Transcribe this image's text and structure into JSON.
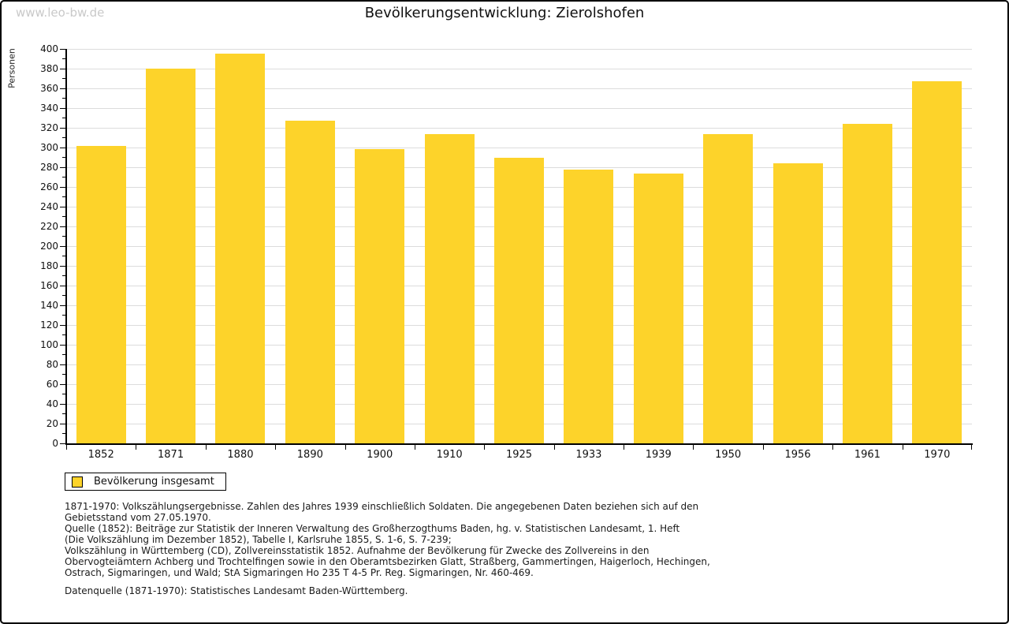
{
  "watermark": "www.leo-bw.de",
  "header": {
    "title": "Bevölkerungsentwicklung: Zierolshofen"
  },
  "chart_data": {
    "type": "bar",
    "title": "Bevölkerungsentwicklung: Zierolshofen",
    "xlabel": "",
    "ylabel": "Personen",
    "categories": [
      "1852",
      "1871",
      "1880",
      "1890",
      "1900",
      "1910",
      "1925",
      "1933",
      "1939",
      "1950",
      "1956",
      "1961",
      "1970"
    ],
    "series": [
      {
        "name": "Bevölkerung insgesamt",
        "values": [
          301,
          380,
          395,
          327,
          298,
          313,
          289,
          277,
          273,
          313,
          284,
          324,
          367
        ]
      }
    ],
    "ylim": [
      0,
      400
    ],
    "ytick_major_step": 20,
    "ytick_minor_step": 10,
    "grid": "horizontal major gridlines on",
    "legend_position": "bottom-left",
    "bar_color": "#fdd32a",
    "gridline_color": "#dcdcdc",
    "axis_color": "#000000"
  },
  "legend": {
    "items": [
      {
        "label": "Bevölkerung insgesamt",
        "color": "#fdd32a"
      }
    ]
  },
  "footer": {
    "notes": "1871-1970: Volkszählungsergebnisse. Zahlen des Jahres 1939 einschließlich Soldaten. Die angegebenen Daten beziehen sich auf den\nGebietsstand vom 27.05.1970.\nQuelle (1852): Beiträge zur Statistik der Inneren Verwaltung des Großherzogthums Baden, hg. v. Statistischen Landesamt, 1. Heft\n(Die Volkszählung im Dezember 1852), Tabelle I, Karlsruhe 1855, S. 1-6, S. 7-239;\nVolkszählung in Württemberg (CD), Zollvereinsstatistik 1852. Aufnahme der Bevölkerung für Zwecke des Zollvereins in den\nObervogteiämtern Achberg und Trochtelfingen sowie in den Oberamtsbezirken Glatt, Straßberg, Gammertingen, Haigerloch, Hechingen,\nOstrach, Sigmaringen, und Wald; StA Sigmaringen Ho 235 T 4-5 Pr. Reg. Sigmaringen, Nr. 460-469.",
    "datasource": "Datenquelle (1871-1970): Statistisches Landesamt Baden-Württemberg."
  }
}
